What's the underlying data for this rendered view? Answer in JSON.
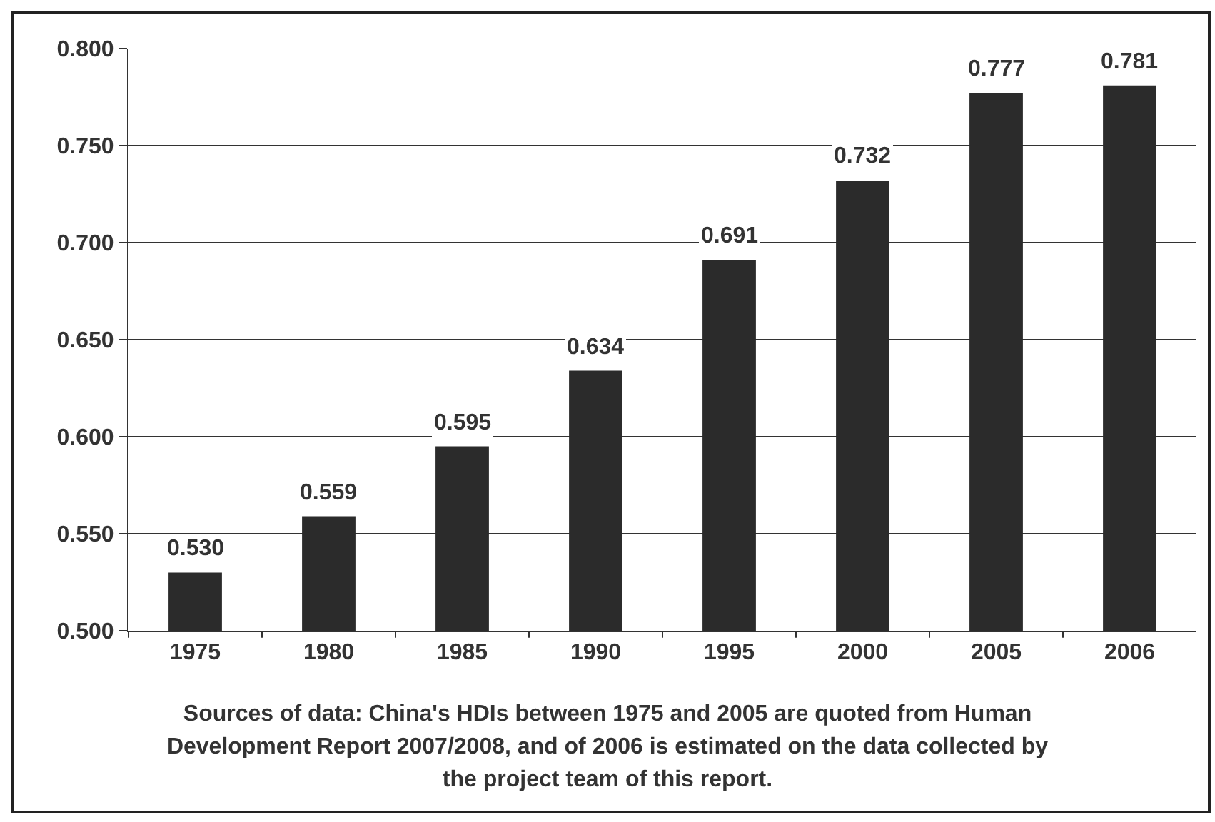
{
  "chart_data": {
    "type": "bar",
    "categories": [
      "1975",
      "1980",
      "1985",
      "1990",
      "1995",
      "2000",
      "2005",
      "2006"
    ],
    "values": [
      0.53,
      0.559,
      0.595,
      0.634,
      0.691,
      0.732,
      0.777,
      0.781
    ],
    "value_labels": [
      "0.530",
      "0.559",
      "0.595",
      "0.634",
      "0.691",
      "0.732",
      "0.777",
      "0.781"
    ],
    "color": "#2b2b2b",
    "ylim": [
      0.5,
      0.8
    ],
    "yticks": [
      {
        "value": 0.5,
        "label": "0.500"
      },
      {
        "value": 0.55,
        "label": "0.550"
      },
      {
        "value": 0.6,
        "label": "0.600"
      },
      {
        "value": 0.65,
        "label": "0.650"
      },
      {
        "value": 0.7,
        "label": "0.700"
      },
      {
        "value": 0.75,
        "label": "0.750"
      },
      {
        "value": 0.8,
        "label": "0.800"
      }
    ],
    "grid": "y",
    "annotations": [
      "Sources of data: China's HDIs between 1975 and 2005 are quoted from Human Development Report 2007/2008, and of 2006 is estimated on the data collected by the project team of this report."
    ]
  }
}
